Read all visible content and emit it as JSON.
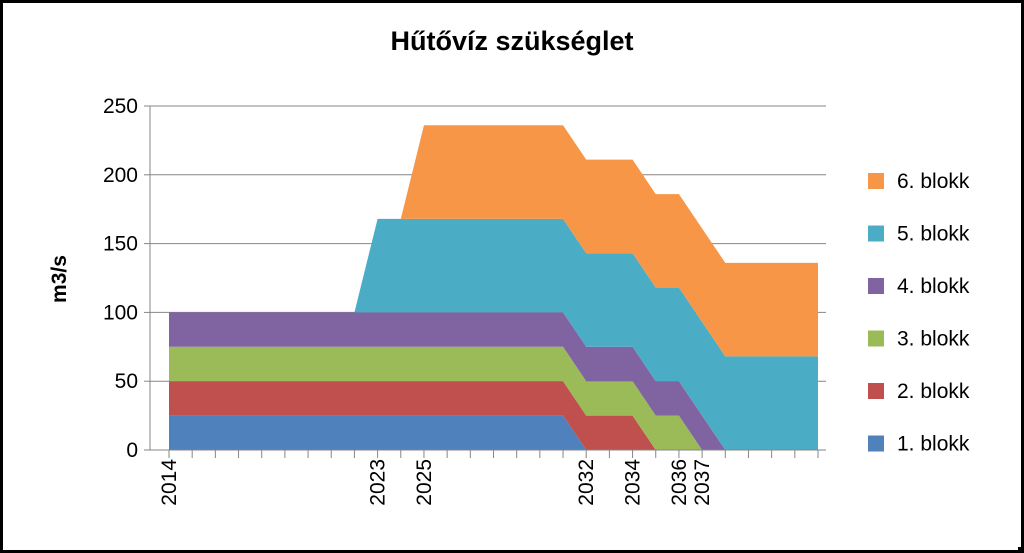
{
  "chart_data": {
    "type": "area",
    "stacked": true,
    "title": "Hűtővíz szükséglet",
    "ylabel": "m3/s",
    "xlabel": "",
    "ylim": [
      0,
      250
    ],
    "yticks": [
      0,
      50,
      100,
      150,
      200,
      250
    ],
    "x": [
      2014,
      2015,
      2016,
      2017,
      2018,
      2019,
      2020,
      2021,
      2022,
      2023,
      2024,
      2025,
      2026,
      2027,
      2028,
      2029,
      2030,
      2031,
      2032,
      2033,
      2034,
      2035,
      2036,
      2037,
      2038,
      2039,
      2040,
      2041,
      2042
    ],
    "x_tick_labels": [
      {
        "x": 2014,
        "label": "2014"
      },
      {
        "x": 2023,
        "label": "2023"
      },
      {
        "x": 2025,
        "label": "2025"
      },
      {
        "x": 2032,
        "label": "2032"
      },
      {
        "x": 2034,
        "label": "2034"
      },
      {
        "x": 2036,
        "label": "2036"
      },
      {
        "x": 2037,
        "label": "2037"
      }
    ],
    "grid": true,
    "legend_position": "right",
    "series": [
      {
        "name": "1. blokk",
        "color": "#4f81bd",
        "values": [
          25,
          25,
          25,
          25,
          25,
          25,
          25,
          25,
          25,
          25,
          25,
          25,
          25,
          25,
          25,
          25,
          25,
          25,
          0,
          0,
          0,
          0,
          0,
          0,
          0,
          0,
          0,
          0,
          0
        ]
      },
      {
        "name": "2. blokk",
        "color": "#c0504d",
        "values": [
          25,
          25,
          25,
          25,
          25,
          25,
          25,
          25,
          25,
          25,
          25,
          25,
          25,
          25,
          25,
          25,
          25,
          25,
          25,
          25,
          25,
          0,
          0,
          0,
          0,
          0,
          0,
          0,
          0
        ]
      },
      {
        "name": "3. blokk",
        "color": "#9bbb59",
        "values": [
          25,
          25,
          25,
          25,
          25,
          25,
          25,
          25,
          25,
          25,
          25,
          25,
          25,
          25,
          25,
          25,
          25,
          25,
          25,
          25,
          25,
          25,
          25,
          0,
          0,
          0,
          0,
          0,
          0
        ]
      },
      {
        "name": "4. blokk",
        "color": "#8064a2",
        "values": [
          25,
          25,
          25,
          25,
          25,
          25,
          25,
          25,
          25,
          25,
          25,
          25,
          25,
          25,
          25,
          25,
          25,
          25,
          25,
          25,
          25,
          25,
          25,
          25,
          0,
          0,
          0,
          0,
          0
        ]
      },
      {
        "name": "5. blokk",
        "color": "#4bacc6",
        "values": [
          0,
          0,
          0,
          0,
          0,
          0,
          0,
          0,
          0,
          68,
          68,
          68,
          68,
          68,
          68,
          68,
          68,
          68,
          68,
          68,
          68,
          68,
          68,
          68,
          68,
          68,
          68,
          68,
          68
        ]
      },
      {
        "name": "6. blokk",
        "color": "#f79646",
        "values": [
          0,
          0,
          0,
          0,
          0,
          0,
          0,
          0,
          0,
          0,
          0,
          68,
          68,
          68,
          68,
          68,
          68,
          68,
          68,
          68,
          68,
          68,
          68,
          68,
          68,
          68,
          68,
          68,
          68
        ]
      }
    ]
  }
}
